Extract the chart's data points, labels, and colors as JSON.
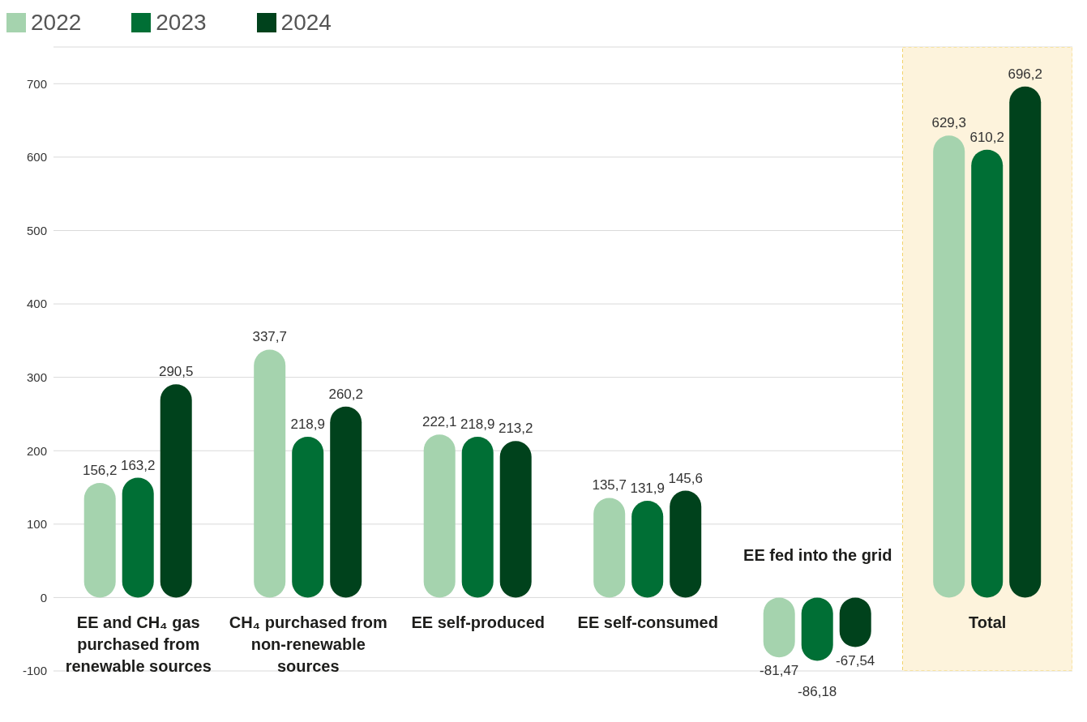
{
  "chart_data": {
    "type": "bar",
    "categories": [
      "EE and CH₄ gas purchased from renewable sources",
      "CH₄ purchased from non-renewable sources",
      "EE self-produced",
      "EE self-consumed",
      "EE fed into the grid",
      "Total"
    ],
    "series": [
      {
        "name": "2022",
        "color": "#a5d3ae",
        "values": [
          156.2,
          337.7,
          222.1,
          135.7,
          -81.47,
          629.3
        ],
        "value_labels": [
          "156,2",
          "337,7",
          "222,1",
          "135,7",
          "-81,47",
          "629,3"
        ]
      },
      {
        "name": "2023",
        "color": "#006f35",
        "values": [
          163.2,
          218.9,
          218.9,
          131.9,
          -86.18,
          610.2
        ],
        "value_labels": [
          "163,2",
          "218,9",
          "218,9",
          "131,9",
          "-86,18",
          "610,2"
        ]
      },
      {
        "name": "2024",
        "color": "#00421c",
        "values": [
          290.5,
          260.2,
          213.2,
          145.6,
          -67.54,
          696.2
        ],
        "value_labels": [
          "290,5",
          "260,2",
          "213,2",
          "145,6",
          "-67,54",
          "696,2"
        ]
      }
    ],
    "ylim": [
      -100,
      750
    ],
    "yticks": [
      -100,
      0,
      100,
      200,
      300,
      400,
      500,
      600,
      700
    ],
    "grid": "y",
    "legend": "top left",
    "bands": [
      {
        "axis": "x",
        "from": "Total",
        "to": "Total",
        "color": "#fdf3dc"
      }
    ]
  }
}
